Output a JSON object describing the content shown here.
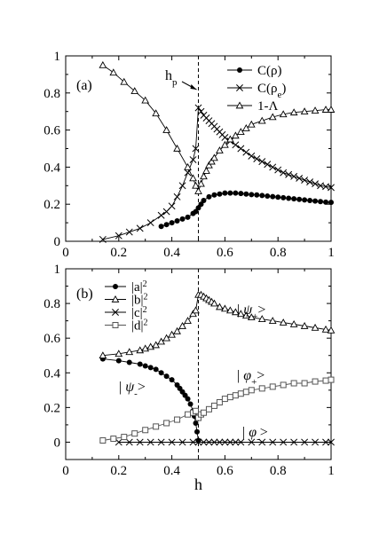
{
  "chart_data": [
    {
      "type": "line",
      "panel_label": "(a)",
      "xlim": [
        0,
        1
      ],
      "ylim": [
        0,
        1
      ],
      "x_ticks": [
        "0",
        "0.2",
        "0.4",
        "0.6",
        "0.8",
        "1"
      ],
      "y_ticks": [
        "0",
        "0.2",
        "0.4",
        "0.6",
        "0.8",
        "1"
      ],
      "vline": {
        "x": 0.5,
        "label": "h",
        "label_sub": "p"
      },
      "legend_position": "top-right",
      "series": [
        {
          "name": "C(ρ)",
          "legend_parts": [
            "C(",
            "ρ",
            ")"
          ],
          "marker": "filled-circle",
          "x": [
            0.36,
            0.38,
            0.4,
            0.42,
            0.44,
            0.46,
            0.48,
            0.49,
            0.5,
            0.51,
            0.52,
            0.54,
            0.56,
            0.58,
            0.6,
            0.62,
            0.64,
            0.66,
            0.68,
            0.7,
            0.72,
            0.74,
            0.76,
            0.78,
            0.8,
            0.82,
            0.84,
            0.86,
            0.88,
            0.9,
            0.92,
            0.94,
            0.96,
            0.98,
            1.0
          ],
          "y": [
            0.08,
            0.09,
            0.1,
            0.11,
            0.12,
            0.13,
            0.15,
            0.16,
            0.18,
            0.2,
            0.22,
            0.24,
            0.25,
            0.255,
            0.26,
            0.26,
            0.26,
            0.258,
            0.255,
            0.252,
            0.25,
            0.247,
            0.244,
            0.241,
            0.238,
            0.235,
            0.232,
            0.229,
            0.226,
            0.223,
            0.22,
            0.217,
            0.214,
            0.211,
            0.21
          ]
        },
        {
          "name": "C(ρe)",
          "legend_parts": [
            "C(",
            "ρ",
            "e",
            ")"
          ],
          "marker": "x",
          "x": [
            0.14,
            0.2,
            0.24,
            0.28,
            0.32,
            0.36,
            0.38,
            0.4,
            0.42,
            0.44,
            0.46,
            0.48,
            0.49,
            0.5,
            0.51,
            0.52,
            0.53,
            0.54,
            0.55,
            0.56,
            0.57,
            0.58,
            0.59,
            0.6,
            0.62,
            0.64,
            0.66,
            0.68,
            0.7,
            0.72,
            0.74,
            0.76,
            0.78,
            0.8,
            0.82,
            0.84,
            0.86,
            0.88,
            0.9,
            0.92,
            0.94,
            0.96,
            0.98,
            1.0
          ],
          "y": [
            0.01,
            0.03,
            0.05,
            0.07,
            0.1,
            0.14,
            0.16,
            0.19,
            0.24,
            0.3,
            0.37,
            0.44,
            0.5,
            0.72,
            0.7,
            0.68,
            0.665,
            0.65,
            0.635,
            0.62,
            0.605,
            0.59,
            0.575,
            0.56,
            0.54,
            0.52,
            0.5,
            0.48,
            0.46,
            0.445,
            0.43,
            0.415,
            0.4,
            0.385,
            0.37,
            0.36,
            0.35,
            0.34,
            0.33,
            0.32,
            0.31,
            0.3,
            0.295,
            0.29
          ]
        },
        {
          "name": "1-Λ",
          "legend_parts": [
            "1-Λ"
          ],
          "marker": "open-triangle",
          "x": [
            0.14,
            0.18,
            0.22,
            0.26,
            0.3,
            0.34,
            0.38,
            0.42,
            0.46,
            0.48,
            0.49,
            0.5,
            0.51,
            0.52,
            0.53,
            0.54,
            0.55,
            0.56,
            0.58,
            0.6,
            0.62,
            0.64,
            0.66,
            0.68,
            0.7,
            0.74,
            0.78,
            0.82,
            0.86,
            0.9,
            0.94,
            0.98,
            1.0
          ],
          "y": [
            0.95,
            0.91,
            0.86,
            0.81,
            0.76,
            0.69,
            0.6,
            0.5,
            0.4,
            0.34,
            0.3,
            0.27,
            0.31,
            0.35,
            0.38,
            0.41,
            0.43,
            0.45,
            0.49,
            0.52,
            0.55,
            0.57,
            0.59,
            0.61,
            0.63,
            0.65,
            0.67,
            0.685,
            0.695,
            0.7,
            0.705,
            0.71,
            0.71
          ]
        }
      ]
    },
    {
      "type": "line",
      "panel_label": "(b)",
      "xlabel": "h",
      "xlim": [
        0,
        1
      ],
      "ylim": [
        -0.1,
        1
      ],
      "x_ticks": [
        "0",
        "0.2",
        "0.4",
        "0.6",
        "0.8",
        "1"
      ],
      "y_ticks": [
        "0",
        "0.2",
        "0.4",
        "0.6",
        "0.8",
        "1"
      ],
      "vline": {
        "x": 0.5
      },
      "legend_position": "top-left",
      "annotations": [
        {
          "text": "|ψ+>",
          "base": "ψ",
          "sub": "+"
        },
        {
          "text": "|ψ->",
          "base": "ψ",
          "sub": "-"
        },
        {
          "text": "|φ+>",
          "base": "φ",
          "sub": "+"
        },
        {
          "text": "|φ->",
          "base": "φ",
          "sub": "-"
        }
      ],
      "series": [
        {
          "name": "|a|2",
          "legend_parts": [
            "|a|",
            "2"
          ],
          "marker": "filled-circle",
          "x": [
            0.14,
            0.2,
            0.24,
            0.28,
            0.3,
            0.32,
            0.34,
            0.36,
            0.38,
            0.4,
            0.42,
            0.43,
            0.44,
            0.45,
            0.46,
            0.47,
            0.48,
            0.485,
            0.49,
            0.495,
            0.5
          ],
          "y": [
            0.48,
            0.47,
            0.46,
            0.45,
            0.44,
            0.43,
            0.42,
            0.4,
            0.38,
            0.36,
            0.33,
            0.31,
            0.29,
            0.27,
            0.25,
            0.22,
            0.18,
            0.15,
            0.11,
            0.06,
            0.01
          ]
        },
        {
          "name": "|b|2",
          "legend_parts": [
            "|b|",
            "2"
          ],
          "marker": "open-triangle",
          "x": [
            0.14,
            0.2,
            0.24,
            0.28,
            0.3,
            0.32,
            0.34,
            0.36,
            0.38,
            0.4,
            0.42,
            0.44,
            0.46,
            0.48,
            0.49,
            0.5,
            0.51,
            0.52,
            0.53,
            0.54,
            0.55,
            0.56,
            0.58,
            0.6,
            0.62,
            0.64,
            0.66,
            0.68,
            0.7,
            0.74,
            0.78,
            0.82,
            0.86,
            0.9,
            0.94,
            0.98,
            1.0
          ],
          "y": [
            0.5,
            0.51,
            0.52,
            0.53,
            0.54,
            0.55,
            0.56,
            0.58,
            0.6,
            0.62,
            0.64,
            0.67,
            0.7,
            0.74,
            0.76,
            0.85,
            0.85,
            0.84,
            0.83,
            0.82,
            0.81,
            0.8,
            0.78,
            0.77,
            0.76,
            0.75,
            0.74,
            0.73,
            0.72,
            0.71,
            0.7,
            0.69,
            0.68,
            0.67,
            0.66,
            0.65,
            0.645
          ]
        },
        {
          "name": "|c|2",
          "legend_parts": [
            "|c|",
            "2"
          ],
          "marker": "x",
          "x": [
            0.2,
            0.24,
            0.28,
            0.32,
            0.36,
            0.4,
            0.44,
            0.48,
            0.5,
            0.52,
            0.54,
            0.56,
            0.58,
            0.6,
            0.62,
            0.64,
            0.66,
            0.7,
            0.74,
            0.78,
            0.82,
            0.86,
            0.9,
            0.94,
            0.98,
            1.0
          ],
          "y": [
            0,
            0,
            0,
            0,
            0,
            0,
            0,
            0,
            0,
            0,
            0,
            0,
            0,
            0,
            0,
            0,
            0,
            0,
            0,
            0,
            0,
            0,
            0,
            0,
            0,
            0
          ]
        },
        {
          "name": "|d|2",
          "legend_parts": [
            "|d|",
            "2"
          ],
          "marker": "open-square",
          "x": [
            0.14,
            0.18,
            0.22,
            0.26,
            0.3,
            0.34,
            0.38,
            0.42,
            0.46,
            0.48,
            0.49,
            0.5,
            0.51,
            0.52,
            0.54,
            0.56,
            0.58,
            0.6,
            0.62,
            0.64,
            0.66,
            0.68,
            0.7,
            0.74,
            0.78,
            0.82,
            0.86,
            0.9,
            0.94,
            0.98,
            1.0
          ],
          "y": [
            0.01,
            0.02,
            0.03,
            0.05,
            0.07,
            0.09,
            0.11,
            0.13,
            0.16,
            0.17,
            0.18,
            0.14,
            0.16,
            0.17,
            0.19,
            0.21,
            0.23,
            0.25,
            0.26,
            0.27,
            0.28,
            0.29,
            0.3,
            0.31,
            0.32,
            0.33,
            0.34,
            0.34,
            0.35,
            0.355,
            0.36
          ]
        }
      ]
    }
  ]
}
